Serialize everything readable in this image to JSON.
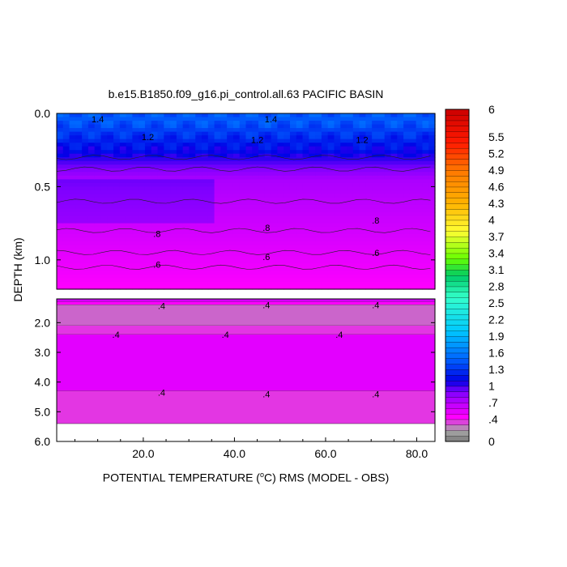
{
  "chart_data": {
    "type": "heatmap",
    "title": "b.e15.B1850.f09_g16.pi_control.all.63 PACIFIC BASIN",
    "xlabel_parts": [
      "POTENTIAL TEMPERATURE (",
      "o",
      "C) RMS (MODEL - OBS)"
    ],
    "ylabel": "DEPTH (km)",
    "x_ticks": [
      "20.0",
      "40.0",
      "60.0",
      "80.0"
    ],
    "x_tick_values": [
      20,
      40,
      60,
      80
    ],
    "xlim": [
      1,
      84
    ],
    "upper_panel": {
      "ylim": [
        0.0,
        1.2
      ],
      "y_ticks": [
        "0.0",
        "0.5",
        "1.0"
      ],
      "y_tick_values": [
        0.0,
        0.5,
        1.0
      ]
    },
    "lower_panel": {
      "ylim": [
        1.2,
        6.0
      ],
      "y_ticks": [
        "2.0",
        "3.0",
        "4.0",
        "5.0",
        "6.0"
      ],
      "y_tick_values": [
        2.0,
        3.0,
        4.0,
        5.0,
        6.0
      ]
    },
    "colorbar": {
      "labels": [
        "0",
        ".4",
        ".7",
        "1",
        "1.3",
        "1.6",
        "1.9",
        "2.2",
        "2.5",
        "2.8",
        "3.1",
        "3.4",
        "3.7",
        "4",
        "4.3",
        "4.6",
        "4.9",
        "5.2",
        "5.5",
        "6"
      ],
      "label_values": [
        0,
        0.4,
        0.7,
        1.0,
        1.3,
        1.6,
        1.9,
        2.2,
        2.5,
        2.8,
        3.1,
        3.4,
        3.7,
        4.0,
        4.3,
        4.6,
        4.9,
        5.2,
        5.5,
        6.0
      ],
      "range": [
        0,
        6
      ],
      "stops": [
        [
          0.0,
          "#7a7a7a"
        ],
        [
          0.2,
          "#a8a8a8"
        ],
        [
          0.45,
          "#ff00ff"
        ],
        [
          0.9,
          "#8000ff"
        ],
        [
          1.1,
          "#0000e6"
        ],
        [
          1.5,
          "#0066ff"
        ],
        [
          2.0,
          "#00c8ff"
        ],
        [
          2.6,
          "#33ffcc"
        ],
        [
          3.0,
          "#00cc66"
        ],
        [
          3.3,
          "#66ff00"
        ],
        [
          3.8,
          "#ffff33"
        ],
        [
          4.3,
          "#ffb300"
        ],
        [
          4.9,
          "#ff7700"
        ],
        [
          5.4,
          "#ff1a00"
        ],
        [
          6.0,
          "#cc0000"
        ]
      ]
    },
    "contour_labels": [
      {
        "text": "1.4",
        "x": 10,
        "y": 0.04
      },
      {
        "text": "1.4",
        "x": 48,
        "y": 0.04
      },
      {
        "text": "1.2",
        "x": 21,
        "y": 0.16
      },
      {
        "text": "1.2",
        "x": 45,
        "y": 0.18
      },
      {
        "text": "1.2",
        "x": 68,
        "y": 0.18
      },
      {
        "text": ".8",
        "x": 23,
        "y": 0.82
      },
      {
        "text": ".8",
        "x": 47,
        "y": 0.78
      },
      {
        "text": ".8",
        "x": 71,
        "y": 0.73
      },
      {
        "text": ".6",
        "x": 23,
        "y": 1.03
      },
      {
        "text": ".6",
        "x": 47,
        "y": 0.98
      },
      {
        "text": ".6",
        "x": 71,
        "y": 0.95
      },
      {
        "text": ".4",
        "x": 24,
        "y": 1.43
      },
      {
        "text": ".4",
        "x": 47,
        "y": 1.4
      },
      {
        "text": ".4",
        "x": 71,
        "y": 1.4
      },
      {
        "text": ".4",
        "x": 14,
        "y": 2.4
      },
      {
        "text": ".4",
        "x": 38,
        "y": 2.4
      },
      {
        "text": ".4",
        "x": 63,
        "y": 2.4
      },
      {
        "text": ".4",
        "x": 24,
        "y": 4.35
      },
      {
        "text": ".4",
        "x": 47,
        "y": 4.4
      },
      {
        "text": ".4",
        "x": 71,
        "y": 4.4
      }
    ],
    "lower_bands": [
      {
        "from": 1.2,
        "to": 1.3,
        "value": 0.6
      },
      {
        "from": 1.3,
        "to": 1.4,
        "value": 0.45
      },
      {
        "from": 1.4,
        "to": 2.1,
        "value": 0.3
      },
      {
        "from": 2.1,
        "to": 2.4,
        "value": 0.37
      },
      {
        "from": 2.4,
        "to": 4.3,
        "value": 0.55
      },
      {
        "from": 4.3,
        "to": 5.4,
        "value": 0.37
      }
    ]
  }
}
